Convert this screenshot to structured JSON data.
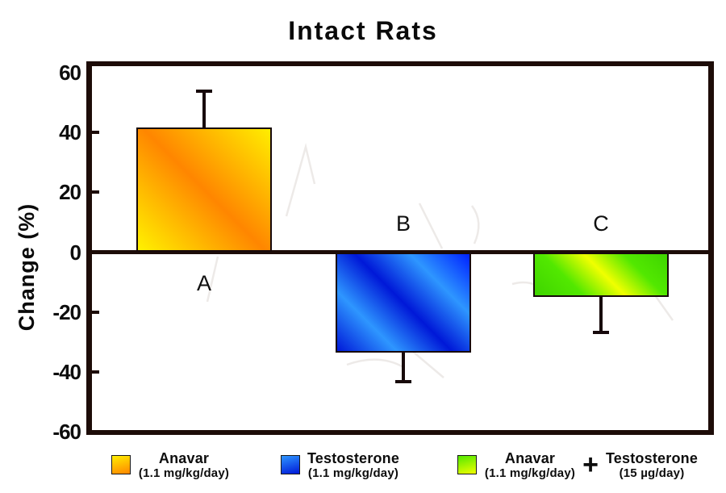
{
  "chart_data": {
    "type": "bar",
    "title": "Intact Rats",
    "ylabel": "Change (%)",
    "ylim": [
      -60,
      60
    ],
    "grid": false,
    "legend_position": "bottom",
    "categories": [
      "A",
      "B",
      "C"
    ],
    "values": [
      41.5,
      -33.5,
      -15
    ],
    "error_bars": [
      12,
      9.5,
      11.5
    ],
    "yticks": [
      {
        "v": 60,
        "label": "60"
      },
      {
        "v": 40,
        "label": "40"
      },
      {
        "v": 20,
        "label": "20"
      },
      {
        "v": 0,
        "label": "0"
      },
      {
        "v": -20,
        "label": "-20"
      },
      {
        "v": -40,
        "label": "-40"
      },
      {
        "v": -60,
        "label": "-60"
      }
    ],
    "colors": {
      "orange": [
        "#fff200",
        "#ff8600",
        "#ffee00"
      ],
      "blue": [
        "#0018d8",
        "#2e96ff",
        "#0022ff"
      ],
      "green": [
        "#3fd400",
        "#f0ff00",
        "#52e800"
      ],
      "frame": "#1d0c08",
      "text": "#0d0d0d"
    },
    "legend": {
      "items": [
        {
          "name": "Anavar",
          "dose": "(1.1 mg/kg/day)",
          "swatch": "orange"
        },
        {
          "name": "Testosterone",
          "dose": "(1.1 mg/kg/day)",
          "swatch": "blue"
        },
        {
          "name": "Anavar",
          "dose": "(1.1 mg/kg/day)",
          "swatch": "green"
        },
        {
          "name": "Testosterone",
          "dose": "(15 µg/day)",
          "swatch": ""
        }
      ],
      "plus": "+"
    }
  }
}
